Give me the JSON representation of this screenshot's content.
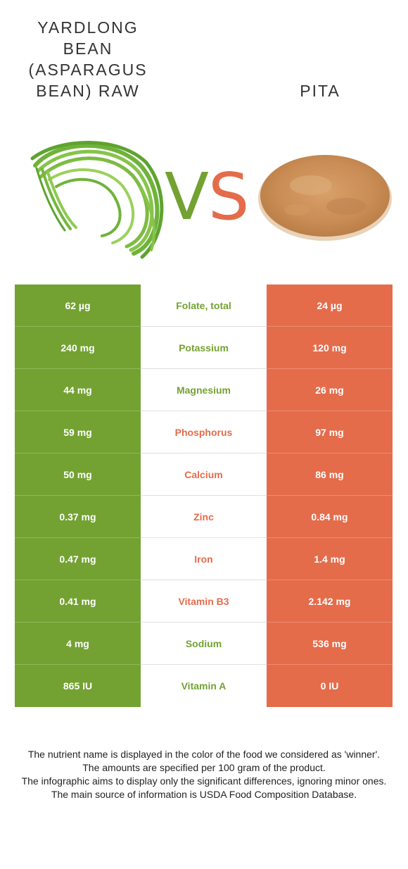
{
  "header": {
    "left_food": "YARDLONG\nBEAN\n(ASPARAGUS\nBEAN) RAW",
    "right_food": "PITA",
    "vs_left_letter": "V",
    "vs_right_letter": "S",
    "left_image_icon": "yardlong-bean-bundle-image",
    "right_image_icon": "pita-bread-image"
  },
  "colors": {
    "left_food": "#73a232",
    "right_food": "#e46c4b"
  },
  "nutrients": [
    {
      "left": "62 µg",
      "name": "Folate, total",
      "right": "24 µg",
      "winner": "left"
    },
    {
      "left": "240 mg",
      "name": "Potassium",
      "right": "120 mg",
      "winner": "left"
    },
    {
      "left": "44 mg",
      "name": "Magnesium",
      "right": "26 mg",
      "winner": "left"
    },
    {
      "left": "59 mg",
      "name": "Phosphorus",
      "right": "97 mg",
      "winner": "right"
    },
    {
      "left": "50 mg",
      "name": "Calcium",
      "right": "86 mg",
      "winner": "right"
    },
    {
      "left": "0.37 mg",
      "name": "Zinc",
      "right": "0.84 mg",
      "winner": "right"
    },
    {
      "left": "0.47 mg",
      "name": "Iron",
      "right": "1.4 mg",
      "winner": "right"
    },
    {
      "left": "0.41 mg",
      "name": "Vitamin B3",
      "right": "2.142 mg",
      "winner": "right"
    },
    {
      "left": "4 mg",
      "name": "Sodium",
      "right": "536 mg",
      "winner": "left"
    },
    {
      "left": "865 IU",
      "name": "Vitamin A",
      "right": "0 IU",
      "winner": "left"
    }
  ],
  "footer": {
    "line1": "The nutrient name is displayed in the color of the food we considered as 'winner'.",
    "line2": "The amounts are specified per 100 gram of the product.",
    "line3": "The infographic aims to display only the significant differences, ignoring minor ones.",
    "line4": "The main source of information is USDA Food Composition Database."
  }
}
